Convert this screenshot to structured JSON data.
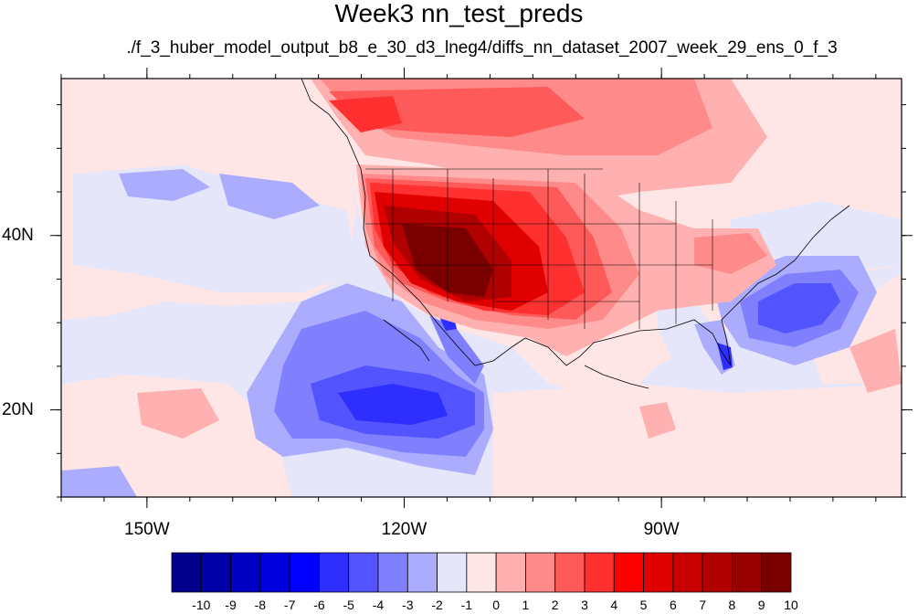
{
  "header": {
    "title": "Week3 nn_test_preds",
    "subtitle": "./f_3_huber_model_output_b8_e_30_d3_lneg4/diffs_nn_dataset_2007_week_29_ens_0_f_3"
  },
  "map": {
    "lat_range": [
      10,
      58
    ],
    "lon_range": [
      -160,
      -62
    ],
    "lat_ticks": [
      {
        "value": 40,
        "label": "40N"
      },
      {
        "value": 20,
        "label": "20N"
      }
    ],
    "lon_ticks": [
      {
        "value": -150,
        "label": "150W"
      },
      {
        "value": -120,
        "label": "120W"
      },
      {
        "value": -90,
        "label": "90W"
      }
    ],
    "minor_lat_step": 5,
    "minor_lon_step": 5,
    "background_color": "#e6e6fa"
  },
  "colorbar": {
    "levels": [
      "-10",
      "-9",
      "-8",
      "-7",
      "-6",
      "-5",
      "-4",
      "-3",
      "-2",
      "-1",
      "0",
      "1",
      "2",
      "3",
      "4",
      "5",
      "6",
      "7",
      "8",
      "9",
      "10"
    ],
    "colors": [
      "#00008b",
      "#0000a8",
      "#0000c4",
      "#0000df",
      "#0000ff",
      "#2e2eff",
      "#5454ff",
      "#8080ff",
      "#acacff",
      "#e6e6fa",
      "#ffe6e6",
      "#ffb0b0",
      "#ff8a8a",
      "#ff5a5a",
      "#ff3030",
      "#ff0000",
      "#e00000",
      "#c80000",
      "#b00000",
      "#960000",
      "#7a0000"
    ]
  }
}
